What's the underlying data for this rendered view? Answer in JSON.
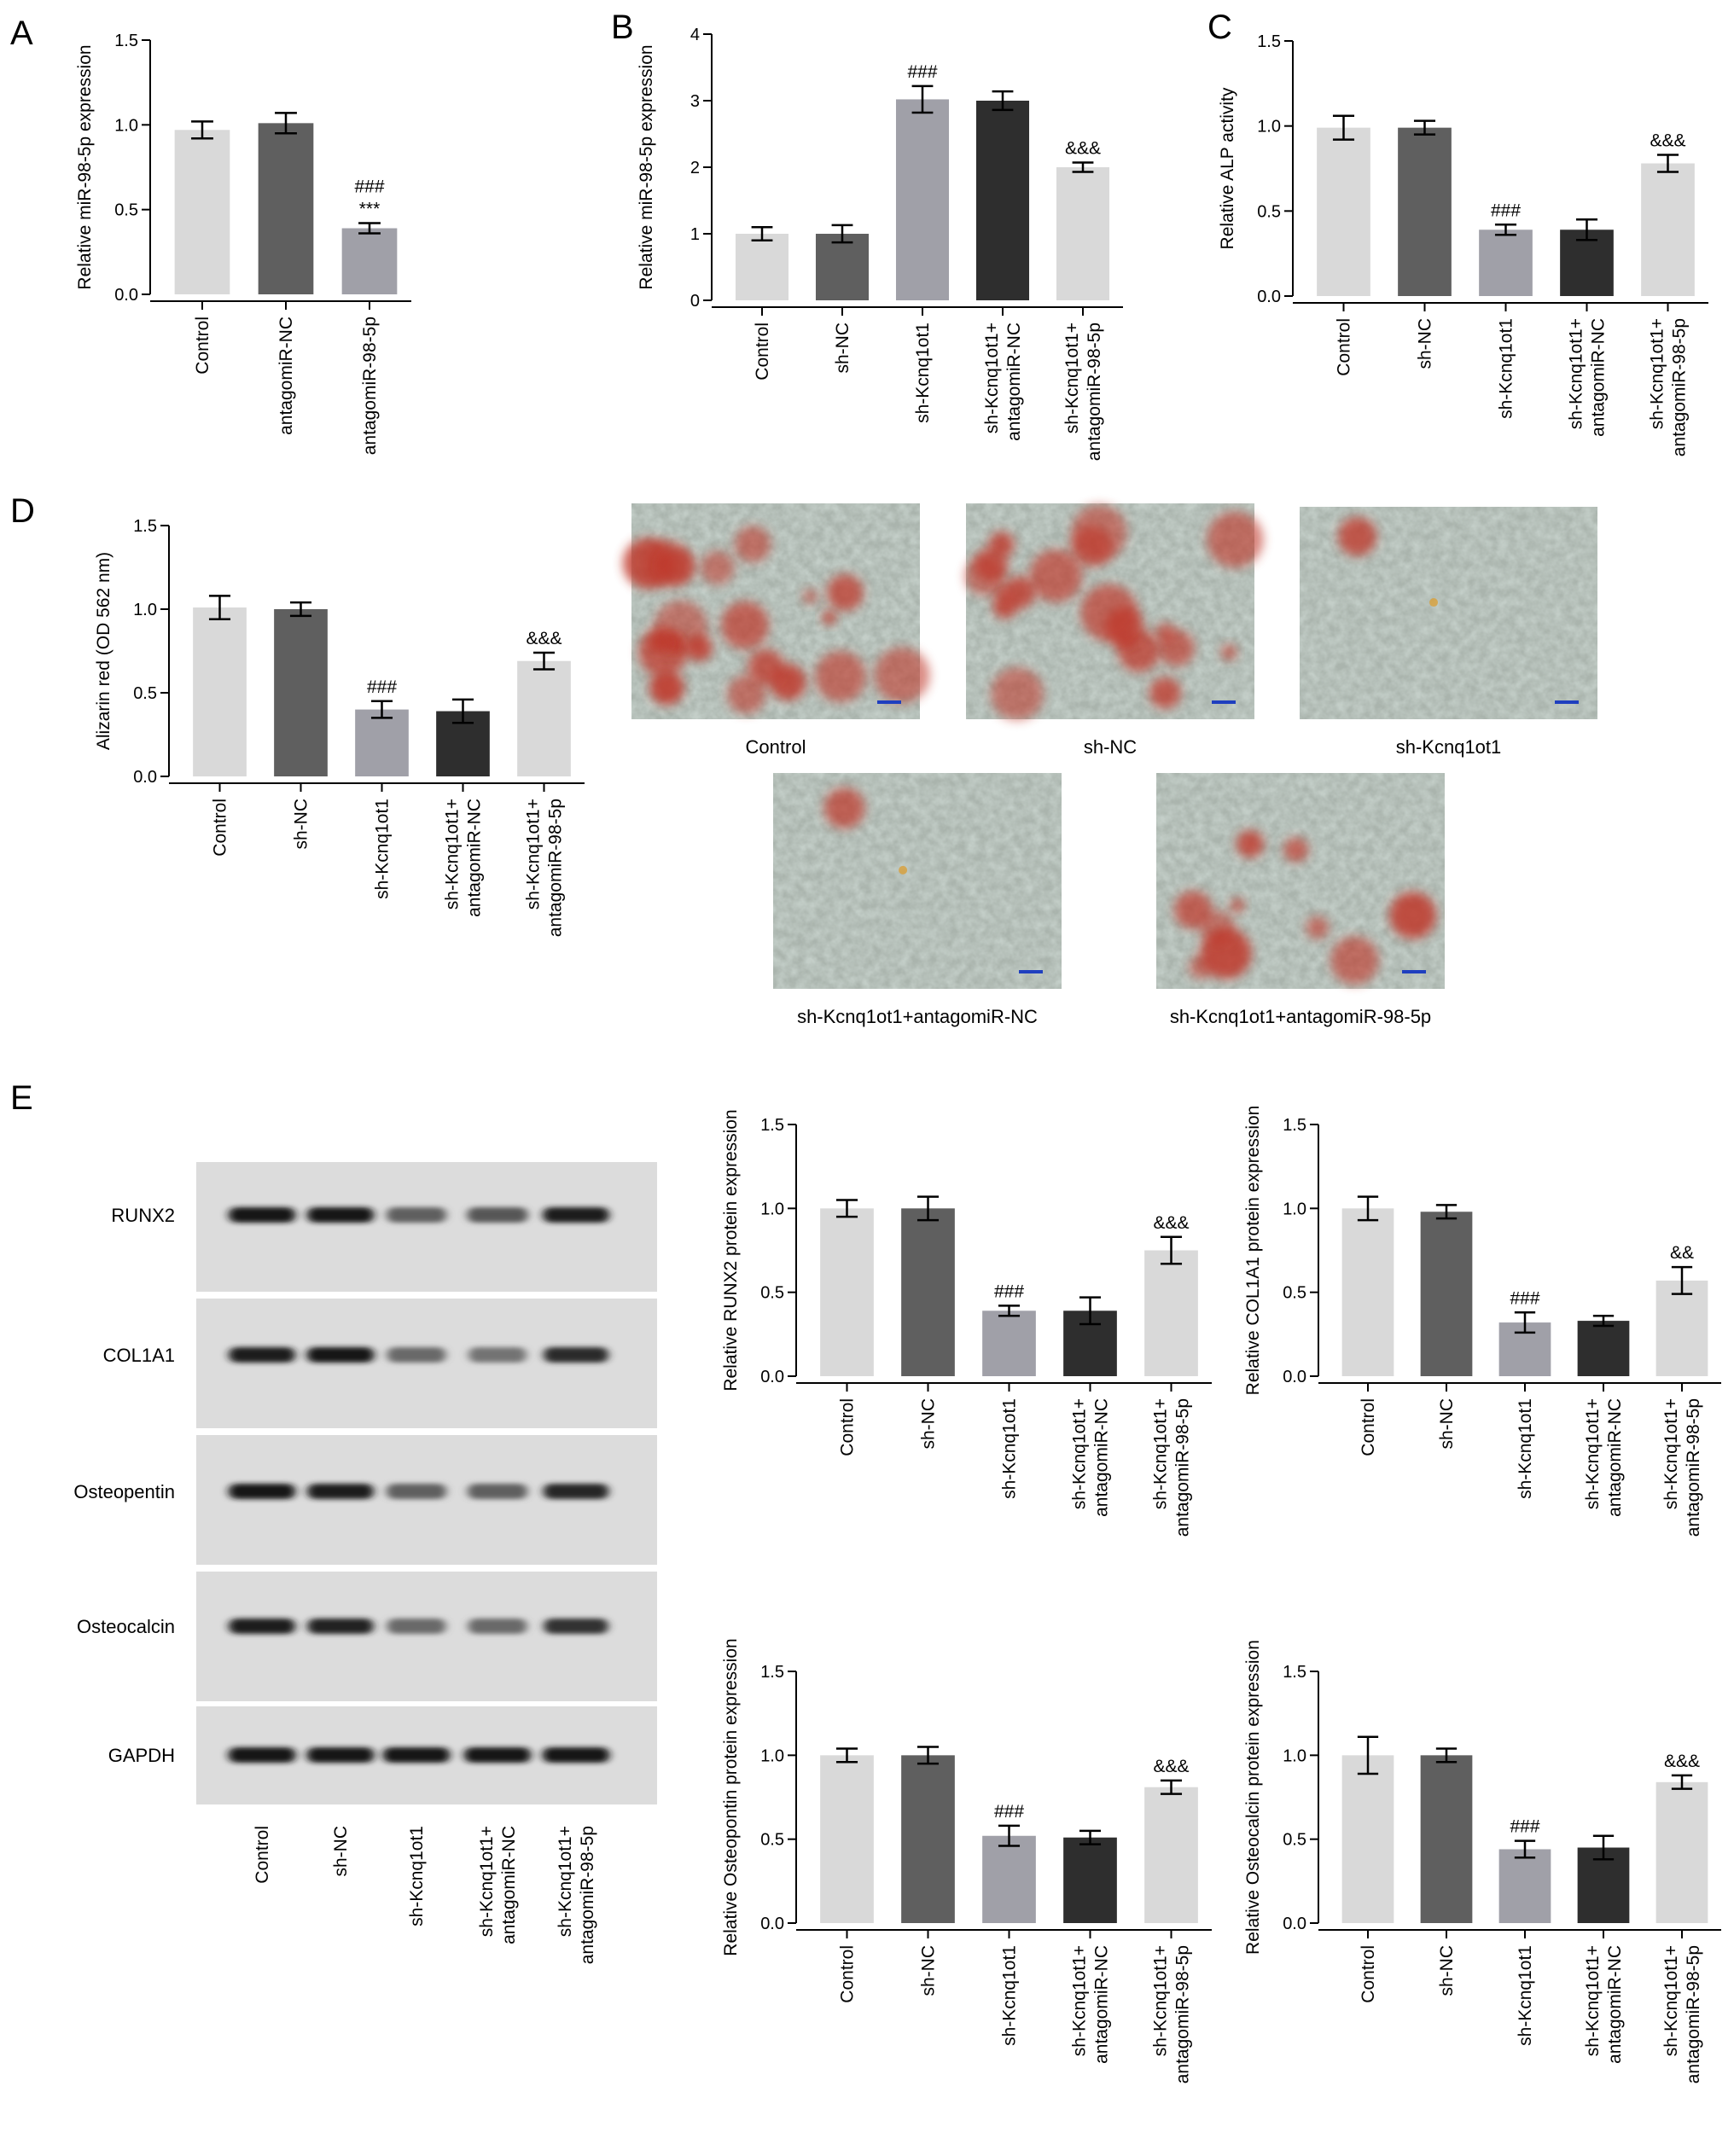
{
  "panel_letters": [
    "A",
    "B",
    "C",
    "D",
    "E"
  ],
  "colors": {
    "light_gray": "#d9d9d9",
    "dark_gray": "#5f5f5f",
    "medium_gray": "#a0a0a8",
    "near_black": "#2e2e2e",
    "red_stain": "#c0392b",
    "scale_bar_blue": "#1f3fbf"
  },
  "chart_data": [
    {
      "panel": "A",
      "type": "bar",
      "categories": [
        "Control",
        "antagomiR-NC",
        "antagomiR-98-5p"
      ],
      "values": [
        0.97,
        1.01,
        0.39
      ],
      "errors": [
        0.05,
        0.06,
        0.03
      ],
      "annotations": [
        "",
        "",
        "###\n***"
      ],
      "ylabel": "Relative miR-98-5p expression",
      "ylim": [
        0,
        1.5
      ],
      "yticks": [
        "0.0",
        "0.5",
        "1.0",
        "1.5"
      ],
      "bar_colors": [
        "#d9d9d9",
        "#5f5f5f",
        "#a0a0a8"
      ]
    },
    {
      "panel": "B",
      "type": "bar",
      "categories": [
        "Control",
        "sh-NC",
        "sh-Kcnq1ot1",
        "sh-Kcnq1ot1+\nantagomiR-NC",
        "sh-Kcnq1ot1+\nantagomiR-98-5p"
      ],
      "values": [
        1.0,
        1.0,
        3.02,
        3.0,
        2.0
      ],
      "errors": [
        0.1,
        0.13,
        0.2,
        0.14,
        0.07
      ],
      "annotations": [
        "",
        "",
        "###",
        "",
        "&&&"
      ],
      "ylabel": "Relative miR-98-5p expression",
      "ylim": [
        0,
        4
      ],
      "yticks": [
        "0",
        "1",
        "2",
        "3",
        "4"
      ],
      "bar_colors": [
        "#d9d9d9",
        "#5f5f5f",
        "#a0a0a8",
        "#2e2e2e",
        "#d9d9d9"
      ]
    },
    {
      "panel": "C",
      "type": "bar",
      "categories": [
        "Control",
        "sh-NC",
        "sh-Kcnq1ot1",
        "sh-Kcnq1ot1+\nantagomiR-NC",
        "sh-Kcnq1ot1+\nantagomiR-98-5p"
      ],
      "values": [
        0.99,
        0.99,
        0.39,
        0.39,
        0.78
      ],
      "errors": [
        0.07,
        0.04,
        0.03,
        0.06,
        0.05
      ],
      "annotations": [
        "",
        "",
        "###",
        "",
        "&&&"
      ],
      "ylabel": "Relative ALP activity",
      "ylim": [
        0,
        1.5
      ],
      "yticks": [
        "0.0",
        "0.5",
        "1.0",
        "1.5"
      ],
      "bar_colors": [
        "#d9d9d9",
        "#5f5f5f",
        "#a0a0a8",
        "#2e2e2e",
        "#d9d9d9"
      ]
    },
    {
      "panel": "D",
      "type": "bar",
      "categories": [
        "Control",
        "sh-NC",
        "sh-Kcnq1ot1",
        "sh-Kcnq1ot1+\nantagomiR-NC",
        "sh-Kcnq1ot1+\nantagomiR-98-5p"
      ],
      "values": [
        1.01,
        1.0,
        0.4,
        0.39,
        0.69
      ],
      "errors": [
        0.07,
        0.04,
        0.05,
        0.07,
        0.05
      ],
      "annotations": [
        "",
        "",
        "###",
        "",
        "&&&"
      ],
      "ylabel": "Alizarin red (OD 562 nm)",
      "ylim": [
        0,
        1.5
      ],
      "yticks": [
        "0.0",
        "0.5",
        "1.0",
        "1.5"
      ],
      "bar_colors": [
        "#d9d9d9",
        "#5f5f5f",
        "#a0a0a8",
        "#2e2e2e",
        "#d9d9d9"
      ]
    },
    {
      "panel": "E1",
      "type": "bar",
      "categories": [
        "Control",
        "sh-NC",
        "sh-Kcnq1ot1",
        "sh-Kcnq1ot1+\nantagomiR-NC",
        "sh-Kcnq1ot1+\nantagomiR-98-5p"
      ],
      "values": [
        1.0,
        1.0,
        0.39,
        0.39,
        0.75
      ],
      "errors": [
        0.05,
        0.07,
        0.03,
        0.08,
        0.08
      ],
      "annotations": [
        "",
        "",
        "###",
        "",
        "&&&"
      ],
      "ylabel": "Relative RUNX2 protein expression",
      "ylim": [
        0,
        1.5
      ],
      "yticks": [
        "0.0",
        "0.5",
        "1.0",
        "1.5"
      ],
      "bar_colors": [
        "#d9d9d9",
        "#5f5f5f",
        "#a0a0a8",
        "#2e2e2e",
        "#d9d9d9"
      ]
    },
    {
      "panel": "E2",
      "type": "bar",
      "categories": [
        "Control",
        "sh-NC",
        "sh-Kcnq1ot1",
        "sh-Kcnq1ot1+\nantagomiR-NC",
        "sh-Kcnq1ot1+\nantagomiR-98-5p"
      ],
      "values": [
        1.0,
        0.98,
        0.32,
        0.33,
        0.57
      ],
      "errors": [
        0.07,
        0.04,
        0.06,
        0.03,
        0.08
      ],
      "annotations": [
        "",
        "",
        "###",
        "",
        "&&"
      ],
      "ylabel": "Relative COL1A1 protein expression",
      "ylim": [
        0,
        1.5
      ],
      "yticks": [
        "0.0",
        "0.5",
        "1.0",
        "1.5"
      ],
      "bar_colors": [
        "#d9d9d9",
        "#5f5f5f",
        "#a0a0a8",
        "#2e2e2e",
        "#d9d9d9"
      ]
    },
    {
      "panel": "E3",
      "type": "bar",
      "categories": [
        "Control",
        "sh-NC",
        "sh-Kcnq1ot1",
        "sh-Kcnq1ot1+\nantagomiR-NC",
        "sh-Kcnq1ot1+\nantagomiR-98-5p"
      ],
      "values": [
        1.0,
        1.0,
        0.52,
        0.51,
        0.81
      ],
      "errors": [
        0.04,
        0.05,
        0.06,
        0.04,
        0.04
      ],
      "annotations": [
        "",
        "",
        "###",
        "",
        "&&&"
      ],
      "ylabel": "Relative Osteopontin protein expression",
      "ylim": [
        0,
        1.5
      ],
      "yticks": [
        "0.0",
        "0.5",
        "1.0",
        "1.5"
      ],
      "bar_colors": [
        "#d9d9d9",
        "#5f5f5f",
        "#a0a0a8",
        "#2e2e2e",
        "#d9d9d9"
      ]
    },
    {
      "panel": "E4",
      "type": "bar",
      "categories": [
        "Control",
        "sh-NC",
        "sh-Kcnq1ot1",
        "sh-Kcnq1ot1+\nantagomiR-NC",
        "sh-Kcnq1ot1+\nantagomiR-98-5p"
      ],
      "values": [
        1.0,
        1.0,
        0.44,
        0.45,
        0.84
      ],
      "errors": [
        0.11,
        0.04,
        0.05,
        0.07,
        0.04
      ],
      "annotations": [
        "",
        "",
        "###",
        "",
        "&&&"
      ],
      "ylabel": "Relative Osteocalcin protein expression",
      "ylim": [
        0,
        1.5
      ],
      "yticks": [
        "0.0",
        "0.5",
        "1.0",
        "1.5"
      ],
      "bar_colors": [
        "#d9d9d9",
        "#5f5f5f",
        "#a0a0a8",
        "#2e2e2e",
        "#d9d9d9"
      ]
    }
  ],
  "micrographs": [
    {
      "label": "Control",
      "stain": 0.9
    },
    {
      "label": "sh-NC",
      "stain": 0.85
    },
    {
      "label": "sh-Kcnq1ot1",
      "stain": 0.04
    },
    {
      "label": "sh-Kcnq1ot1+antagomiR-NC",
      "stain": 0.06
    },
    {
      "label": "sh-Kcnq1ot1+antagomiR-98-5p",
      "stain": 0.45
    }
  ],
  "western_blot": {
    "rows": [
      {
        "label": "RUNX2",
        "intensities": [
          0.92,
          0.92,
          0.55,
          0.6,
          0.9
        ]
      },
      {
        "label": "COL1A1",
        "intensities": [
          0.9,
          0.95,
          0.5,
          0.45,
          0.82
        ]
      },
      {
        "label": "Osteopentin",
        "intensities": [
          0.92,
          0.9,
          0.55,
          0.55,
          0.85
        ]
      },
      {
        "label": "Osteocalcin",
        "intensities": [
          0.9,
          0.88,
          0.5,
          0.5,
          0.8
        ]
      },
      {
        "label": "GAPDH",
        "intensities": [
          0.95,
          0.95,
          0.93,
          0.92,
          0.93
        ]
      }
    ],
    "lanes": [
      "Control",
      "sh-NC",
      "sh-Kcnq1ot1",
      "sh-Kcnq1ot1+\nantagomiR-NC",
      "sh-Kcnq1ot1+\nantagomiR-98-5p"
    ]
  }
}
